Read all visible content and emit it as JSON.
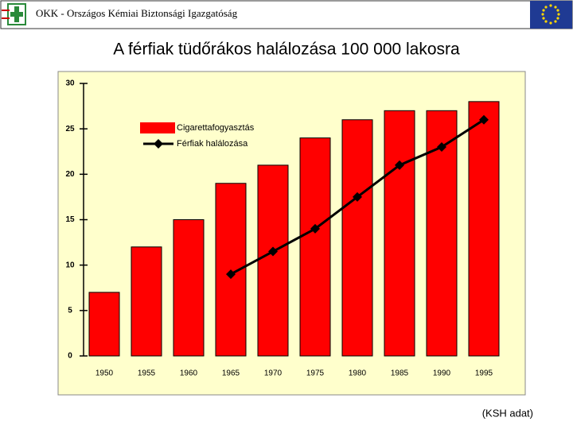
{
  "header": {
    "text": "OKK - Országos Kémiai Biztonsági Igazgatóság"
  },
  "chart_data": {
    "type": "bar",
    "title": "A férfiak tüdőrákos halálozása 100 000 lakosra",
    "categories": [
      "1950",
      "1955",
      "1960",
      "1965",
      "1970",
      "1975",
      "1980",
      "1985",
      "1990",
      "1995"
    ],
    "series": [
      {
        "name": "Cigarettafogyasztás",
        "type": "bar",
        "color": "#ff0000",
        "values": [
          7,
          12,
          15,
          19,
          21,
          24,
          26,
          27,
          27,
          28
        ]
      },
      {
        "name": "Férfiak halálozása",
        "type": "line",
        "color": "#000000",
        "values": [
          null,
          null,
          null,
          9,
          11.5,
          14,
          17.5,
          21,
          23,
          26
        ]
      }
    ],
    "ylim": [
      0,
      30
    ],
    "yticks": [
      0,
      5,
      10,
      15,
      20,
      25,
      30
    ],
    "note": "(KSH adat)"
  }
}
